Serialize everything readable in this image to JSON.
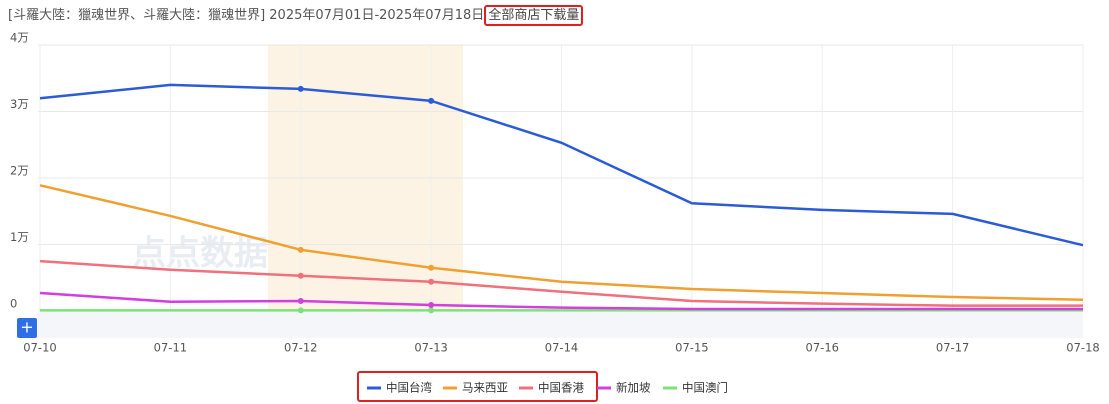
{
  "chart_data": {
    "type": "line",
    "title": "[斗羅大陸：獵魂世界、斗羅大陸：獵魂世界] 2025年07月01日-2025年07月18日",
    "metric": "全部商店下载量",
    "watermark": "点点数据",
    "categories": [
      "07-10",
      "07-11",
      "07-12",
      "07-13",
      "07-14",
      "07-15",
      "07-16",
      "07-17",
      "07-18"
    ],
    "series": [
      {
        "name": "中国台湾",
        "color": "#2b5bd7",
        "values": [
          32000,
          34000,
          33400,
          31600,
          25300,
          16200,
          15200,
          14600,
          9900
        ]
      },
      {
        "name": "马来西亚",
        "color": "#f0a030",
        "values": [
          18900,
          14300,
          9200,
          6500,
          4400,
          3300,
          2700,
          2100,
          1700
        ]
      },
      {
        "name": "中国香港",
        "color": "#f0707c",
        "values": [
          7500,
          6200,
          5300,
          4400,
          2900,
          1500,
          1100,
          800,
          800
        ]
      },
      {
        "name": "新加坡",
        "color": "#d23ee0",
        "values": [
          2700,
          1400,
          1500,
          900,
          500,
          300,
          300,
          300,
          300
        ]
      },
      {
        "name": "中国澳门",
        "color": "#7ee07a",
        "values": [
          100,
          100,
          100,
          100,
          100,
          100,
          100,
          100,
          100
        ]
      }
    ],
    "ylim": [
      0,
      40000
    ],
    "yticks": [
      0,
      {
        "value": 10000,
        "label": "1万"
      },
      {
        "value": 20000,
        "label": "2万"
      },
      {
        "value": 30000,
        "label": "3万"
      },
      {
        "value": 40000,
        "label": "4万"
      }
    ],
    "grid": true
  }
}
